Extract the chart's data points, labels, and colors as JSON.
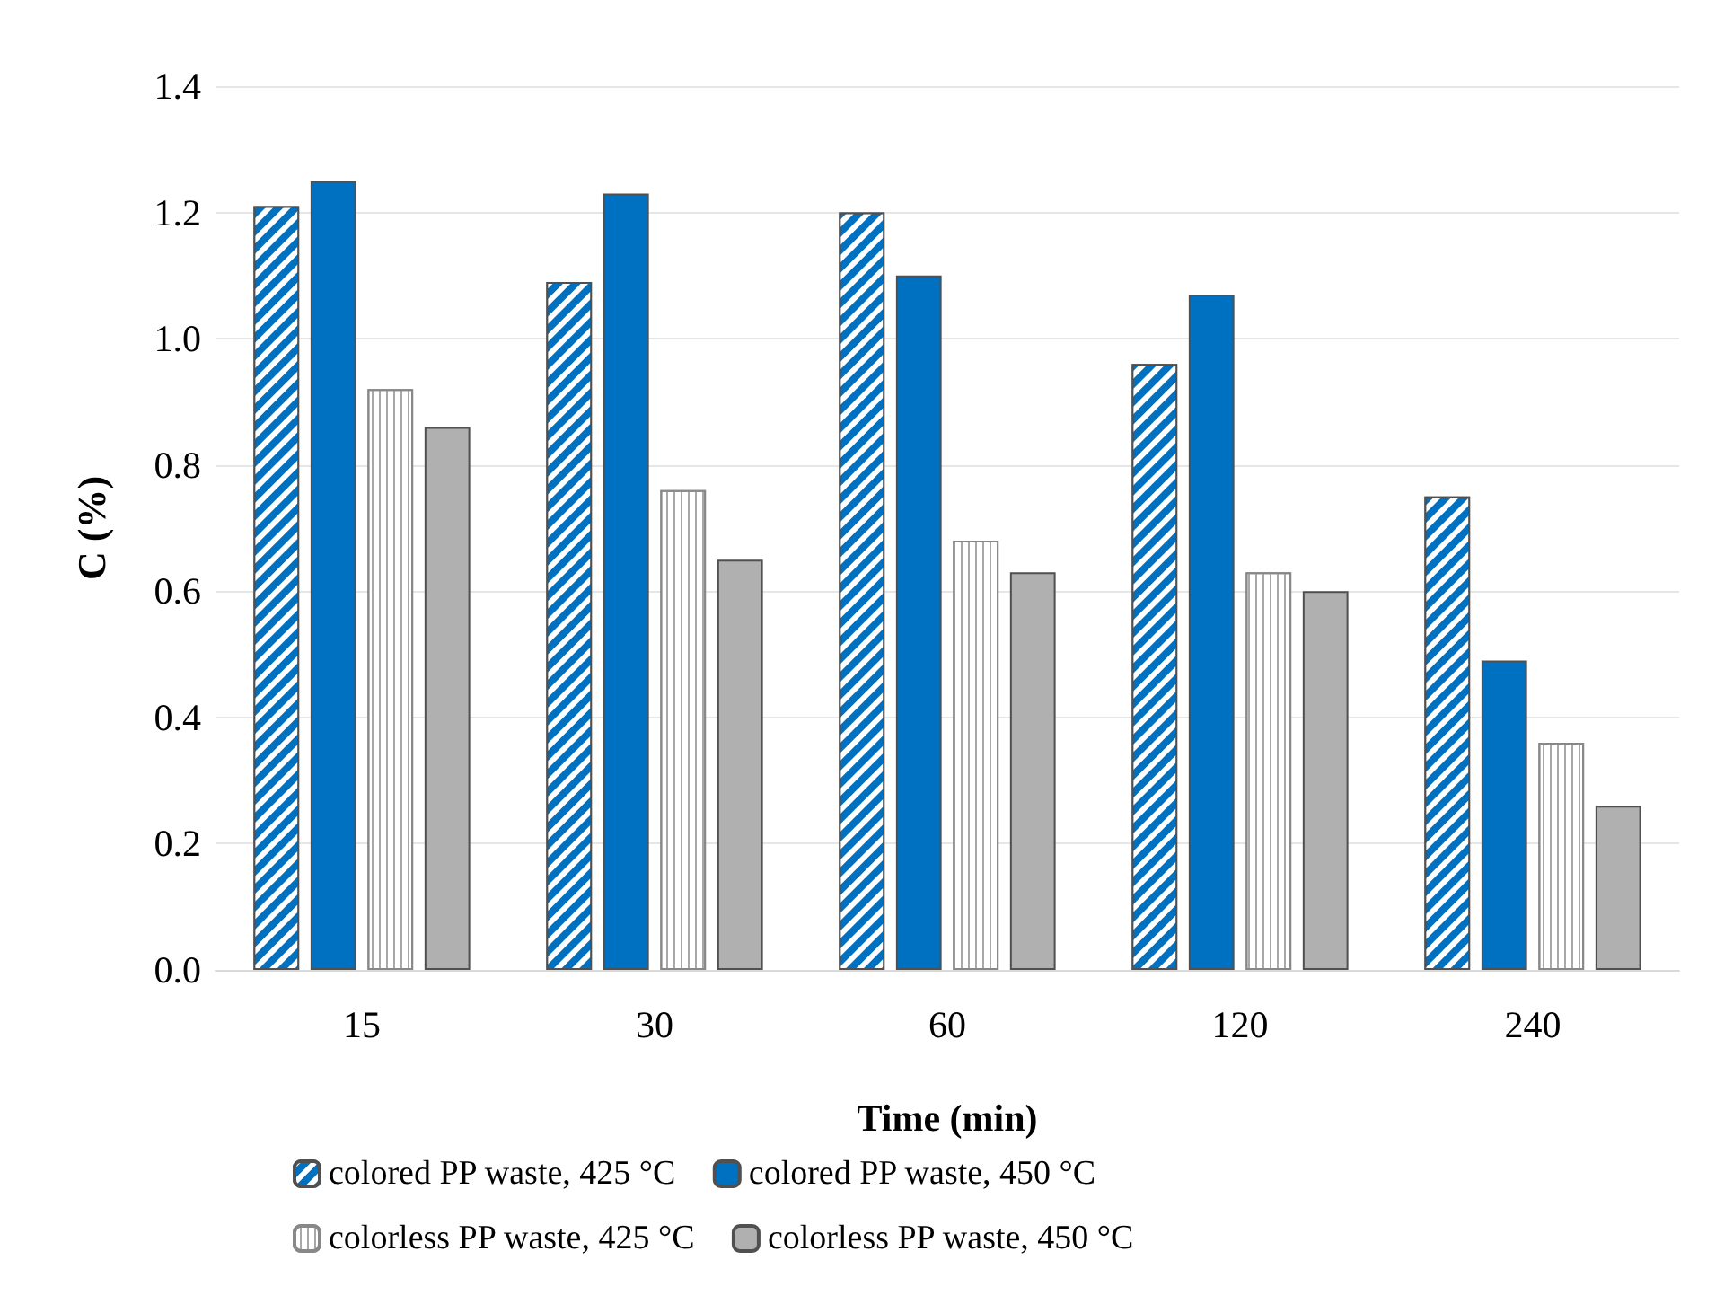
{
  "chart_data": {
    "type": "bar",
    "xlabel": "Time (min)",
    "ylabel": "C (%)",
    "categories": [
      "15",
      "30",
      "60",
      "120",
      "240"
    ],
    "series": [
      {
        "name": "colored PP waste, 425 °C",
        "color": "#0070c0",
        "values": [
          1.21,
          1.09,
          1.2,
          0.96,
          0.75
        ]
      },
      {
        "name": "colored PP waste, 450 °C",
        "color": "#0070c0",
        "values": [
          1.25,
          1.23,
          1.1,
          1.07,
          0.49
        ]
      },
      {
        "name": "colorless PP waste, 425 °C",
        "color": "#ffffff",
        "values": [
          0.92,
          0.76,
          0.68,
          0.63,
          0.36
        ]
      },
      {
        "name": "colorless PP waste, 450 °C",
        "color": "#b0b0b0",
        "values": [
          0.86,
          0.65,
          0.63,
          0.6,
          0.26
        ]
      }
    ],
    "ylim": [
      0,
      1.4
    ],
    "yticks": [
      {
        "value": 0,
        "label": "0.0"
      },
      0.2,
      0.4,
      0.6,
      0.8,
      {
        "value": 1,
        "label": "1.0"
      },
      1.2,
      1.4
    ],
    "grid": "y",
    "legend": "bottom"
  }
}
